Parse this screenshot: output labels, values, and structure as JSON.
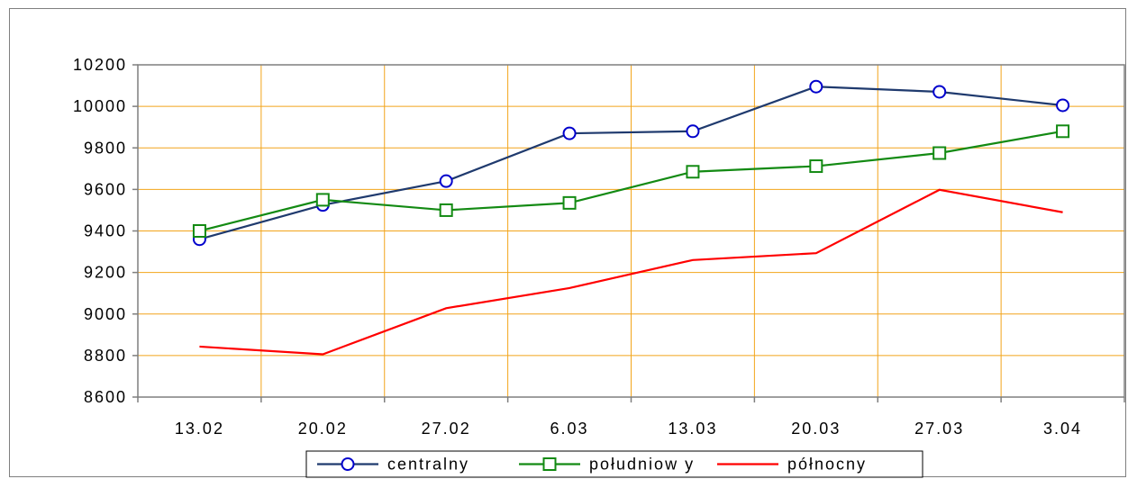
{
  "chart_data": {
    "type": "line",
    "categories": [
      "13.02",
      "20.02",
      "27.02",
      "6.03",
      "13.03",
      "20.03",
      "27.03",
      "3.04"
    ],
    "ylim": [
      8600,
      10200
    ],
    "yticks": [
      8600,
      8800,
      9000,
      9200,
      9400,
      9600,
      9800,
      10000,
      10200
    ],
    "grid": true,
    "legend_position": "bottom",
    "series": [
      {
        "name": "centralny",
        "color": "#0000cc",
        "line_color": "#1f3a6e",
        "marker": "circle",
        "values": [
          9360,
          9525,
          9640,
          9870,
          9880,
          10095,
          10070,
          10005
        ]
      },
      {
        "name": "południow y",
        "color": "#138a13",
        "line_color": "#138a13",
        "marker": "square",
        "values": [
          9400,
          9550,
          9500,
          9535,
          9685,
          9712,
          9775,
          9880
        ]
      },
      {
        "name": "północny",
        "color": "#ff0000",
        "line_color": "#ff0000",
        "marker": "none",
        "values": [
          8843,
          8806,
          9028,
          9125,
          9260,
          9293,
          9598,
          9490
        ]
      }
    ]
  }
}
